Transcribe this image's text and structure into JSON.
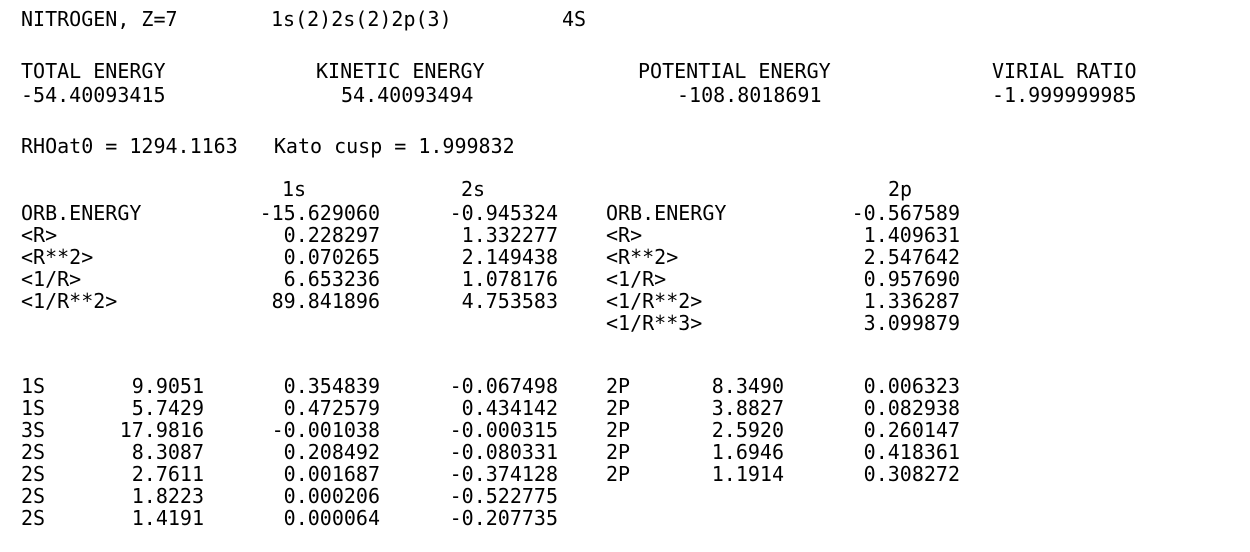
{
  "header": {
    "element": "NITROGEN, Z=7",
    "configuration": "1s(2)2s(2)2p(3)",
    "term": "4S"
  },
  "energies": {
    "total_label": "TOTAL ENERGY",
    "total_value": "-54.40093415",
    "kinetic_label": "KINETIC ENERGY",
    "kinetic_value": "54.40093494",
    "potential_label": "POTENTIAL ENERGY",
    "potential_value": "-108.8018691",
    "virial_label": "VIRIAL RATIO",
    "virial_value": "-1.999999985"
  },
  "cusp_line": "RHOat0 = 1294.1163   Kato cusp = 1.999832",
  "s_orbitals": {
    "col_1s": "1s",
    "col_2s": "2s",
    "labels": [
      "ORB.ENERGY",
      "<R>",
      "<R**2>",
      "<1/R>",
      "<1/R**2>"
    ],
    "values_1s": [
      "-15.629060",
      "0.228297",
      "0.070265",
      "6.653236",
      "89.841896"
    ],
    "values_2s": [
      "-0.945324",
      "1.332277",
      "2.149438",
      "1.078176",
      "4.753583"
    ]
  },
  "p_orbitals": {
    "col_2p": "2p",
    "labels": [
      "ORB.ENERGY",
      "<R>",
      "<R**2>",
      "<1/R>",
      "<1/R**2>",
      "<1/R**3>"
    ],
    "values_2p": [
      "-0.567589",
      "1.409631",
      "2.547642",
      "0.957690",
      "1.336287",
      "3.099879"
    ]
  },
  "s_basis": {
    "types": [
      "1S",
      "1S",
      "3S",
      "2S",
      "2S",
      "2S",
      "2S"
    ],
    "exponents": [
      "9.9051",
      "5.7429",
      "17.9816",
      "8.3087",
      "2.7611",
      "1.8223",
      "1.4191"
    ],
    "coef_1s": [
      "0.354839",
      "0.472579",
      "-0.001038",
      "0.208492",
      "0.001687",
      "0.000206",
      "0.000064"
    ],
    "coef_2s": [
      "-0.067498",
      "0.434142",
      "-0.000315",
      "-0.080331",
      "-0.374128",
      "-0.522775",
      "-0.207735"
    ]
  },
  "p_basis": {
    "types": [
      "2P",
      "2P",
      "2P",
      "2P",
      "2P"
    ],
    "exponents": [
      "8.3490",
      "3.8827",
      "2.5920",
      "1.6946",
      "1.1914"
    ],
    "coef_2p": [
      "0.006323",
      "0.082938",
      "0.260147",
      "0.418361",
      "0.308272"
    ]
  }
}
